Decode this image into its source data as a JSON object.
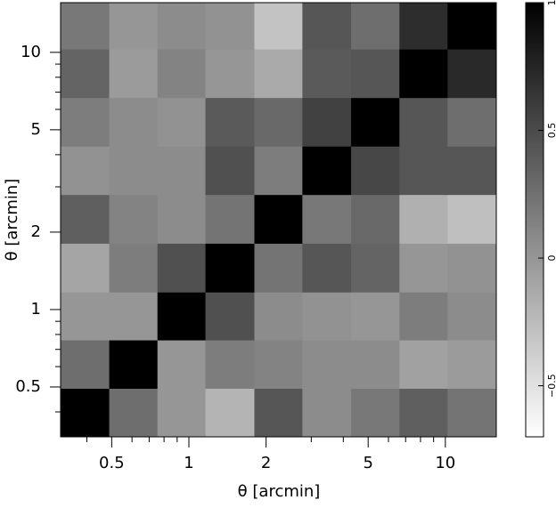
{
  "chart_data": {
    "type": "heatmap",
    "xlabel": "θ [arcmin]",
    "ylabel": "θ [arcmin]",
    "xscale": "log",
    "yscale": "log",
    "xlim": [
      0.316,
      15.8
    ],
    "ylim": [
      0.32,
      15.6
    ],
    "xticks": [
      0.5,
      1,
      2,
      5,
      10
    ],
    "yticks": [
      0.5,
      1,
      2,
      5,
      10
    ],
    "xminorticks": [
      0.4,
      0.6,
      0.7,
      0.8,
      0.9,
      3,
      4,
      6,
      7,
      8,
      9
    ],
    "yminorticks": [
      0.4,
      0.6,
      0.7,
      0.8,
      0.9,
      3,
      4,
      6,
      7,
      8,
      9
    ],
    "xbins": [
      0.316,
      0.489,
      0.754,
      1.16,
      1.8,
      2.77,
      4.29,
      6.62,
      10.2,
      15.8
    ],
    "ybins": [
      0.32,
      0.494,
      0.762,
      1.17,
      1.81,
      2.8,
      4.32,
      6.67,
      10.3,
      15.6
    ],
    "values": [
      [
        1,
        0.27,
        0.0,
        -0.2,
        0.43,
        0.07,
        0.2,
        0.37,
        0.23
      ],
      [
        0.27,
        1,
        0.0,
        0.17,
        0.13,
        0.07,
        0.07,
        -0.07,
        -0.03
      ],
      [
        0.0,
        0.0,
        1,
        0.47,
        0.07,
        0.03,
        0.0,
        0.17,
        0.07
      ],
      [
        -0.1,
        0.17,
        0.47,
        1,
        0.23,
        0.43,
        0.33,
        0.0,
        0.03
      ],
      [
        0.37,
        0.13,
        0.07,
        0.23,
        1,
        0.2,
        0.3,
        -0.17,
        -0.27
      ],
      [
        0.03,
        0.07,
        0.07,
        0.47,
        0.17,
        1,
        0.53,
        0.43,
        0.43
      ],
      [
        0.17,
        0.07,
        0.03,
        0.4,
        0.3,
        0.57,
        1,
        0.43,
        0.27
      ],
      [
        0.33,
        -0.03,
        0.13,
        0.0,
        -0.13,
        0.4,
        0.43,
        1,
        0.73
      ],
      [
        0.2,
        0.0,
        0.07,
        0.03,
        -0.3,
        0.43,
        0.27,
        0.7,
        1
      ]
    ],
    "cmap": "gray_r",
    "clim": [
      -0.7,
      1
    ],
    "cticks": [
      1,
      0.5,
      0,
      {
        "value": -0.5,
        "label": "−0.5"
      }
    ]
  }
}
